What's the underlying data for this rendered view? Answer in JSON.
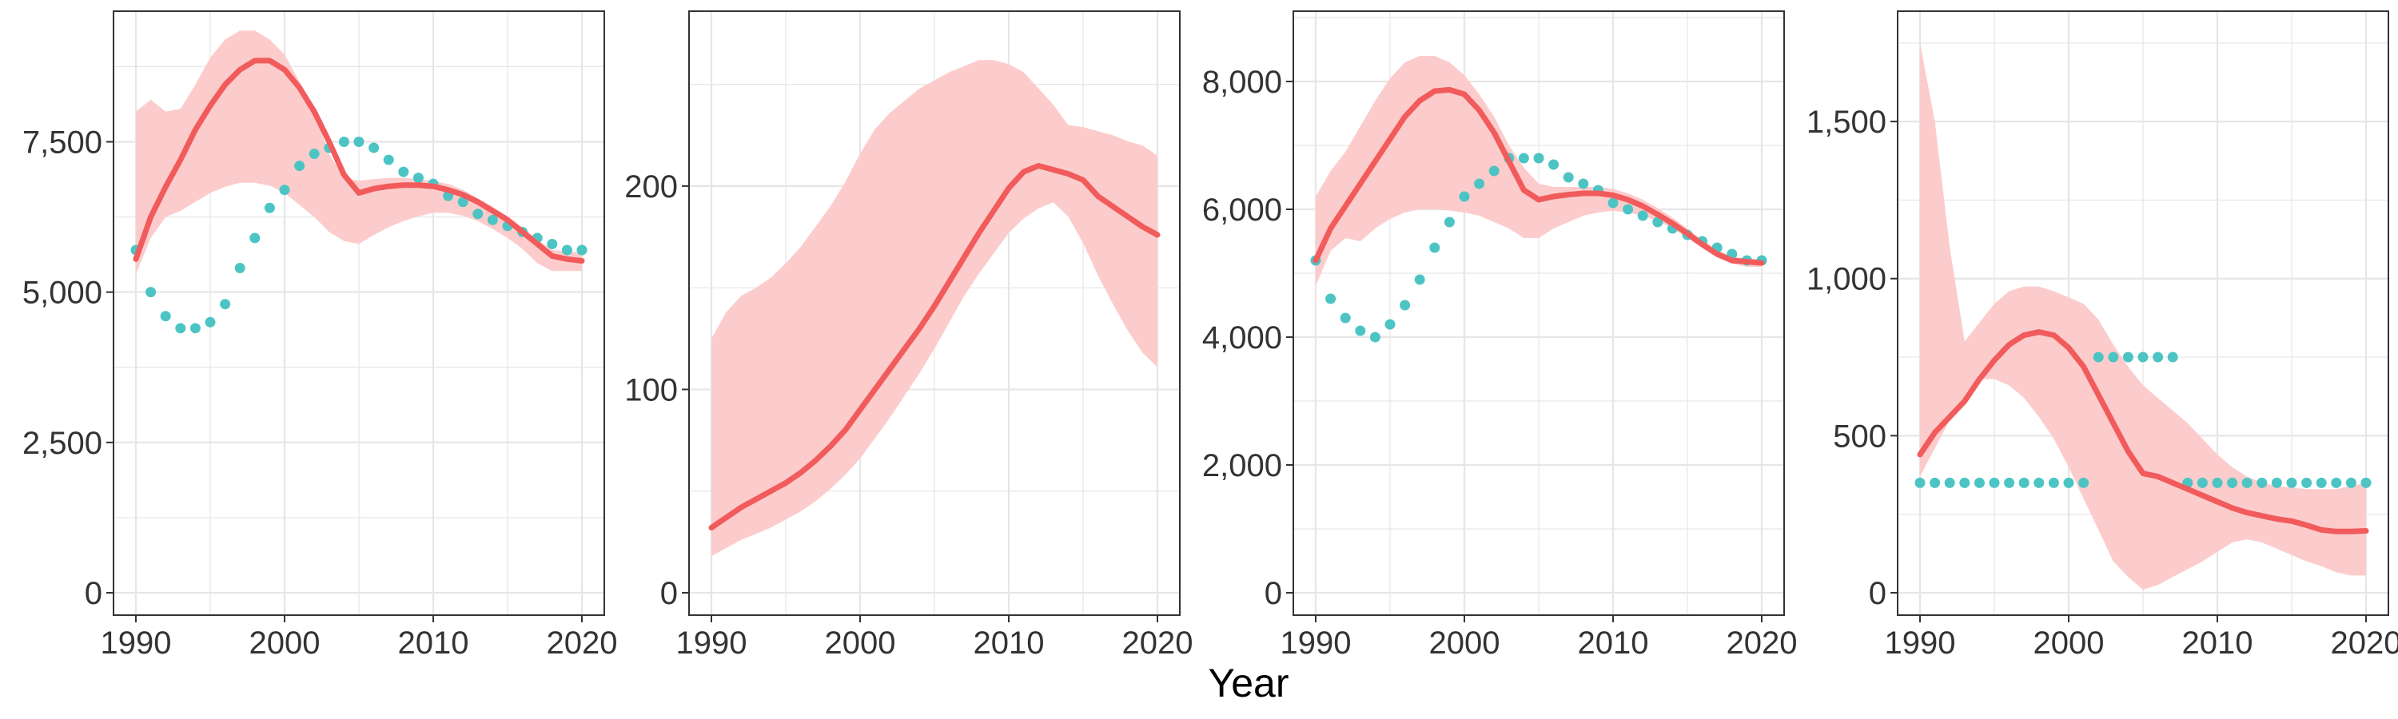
{
  "colors": {
    "line": "#f15b5b",
    "band": "#fccccc",
    "points": "#4cc4c4",
    "grid": "#e6e6e6",
    "border": "#333333",
    "text": "#333333"
  },
  "x_label": "Year",
  "chart_data": [
    {
      "type": "line",
      "xlim": [
        1990,
        2020
      ],
      "ylim": [
        0,
        9300
      ],
      "x_ticks": [
        1990,
        2000,
        2010,
        2020
      ],
      "x_tick_labels": [
        "1990",
        "2000",
        "2010",
        "2020"
      ],
      "y_ticks": [
        0,
        2500,
        5000,
        7500
      ],
      "y_tick_labels": [
        "0",
        "2,500",
        "5,000",
        "7,500"
      ],
      "grid": true,
      "x": [
        1990,
        1991,
        1992,
        1993,
        1994,
        1995,
        1996,
        1997,
        1998,
        1999,
        2000,
        2001,
        2002,
        2003,
        2004,
        2005,
        2006,
        2007,
        2008,
        2009,
        2010,
        2011,
        2012,
        2013,
        2014,
        2015,
        2016,
        2017,
        2018,
        2019,
        2020
      ],
      "line": [
        5550,
        6250,
        6750,
        7200,
        7700,
        8100,
        8450,
        8700,
        8850,
        8850,
        8700,
        8400,
        8000,
        7500,
        6950,
        6650,
        6720,
        6760,
        6780,
        6780,
        6760,
        6700,
        6620,
        6500,
        6350,
        6200,
        6000,
        5800,
        5600,
        5550,
        5520
      ],
      "band_lower": [
        5300,
        5900,
        6250,
        6350,
        6500,
        6650,
        6750,
        6820,
        6820,
        6770,
        6650,
        6450,
        6250,
        6000,
        5850,
        5800,
        5950,
        6080,
        6180,
        6260,
        6320,
        6320,
        6270,
        6180,
        6050,
        5900,
        5720,
        5480,
        5350,
        5350,
        5350
      ],
      "band_upper": [
        8000,
        8200,
        8000,
        8050,
        8450,
        8900,
        9200,
        9350,
        9350,
        9200,
        8950,
        8500,
        8000,
        7300,
        6900,
        6850,
        6880,
        6900,
        6900,
        6880,
        6850,
        6800,
        6700,
        6560,
        6420,
        6260,
        6080,
        5880,
        5700,
        5680,
        5660
      ],
      "points": [
        5700,
        5000,
        4600,
        4400,
        4400,
        4500,
        4800,
        5400,
        5900,
        6400,
        6700,
        7100,
        7300,
        7400,
        7500,
        7500,
        7400,
        7200,
        7000,
        6900,
        6800,
        6600,
        6500,
        6300,
        6200,
        6100,
        6000,
        5900,
        5800,
        5700,
        5700
      ]
    },
    {
      "type": "line",
      "xlim": [
        1990,
        2020
      ],
      "ylim": [
        0,
        275
      ],
      "x_ticks": [
        1990,
        2000,
        2010,
        2020
      ],
      "x_tick_labels": [
        "1990",
        "2000",
        "2010",
        "2020"
      ],
      "y_ticks": [
        0,
        100,
        200
      ],
      "y_tick_labels": [
        "0",
        "100",
        "200"
      ],
      "grid": true,
      "x": [
        1990,
        1991,
        1992,
        1993,
        1994,
        1995,
        1996,
        1997,
        1998,
        1999,
        2000,
        2001,
        2002,
        2003,
        2004,
        2005,
        2006,
        2007,
        2008,
        2009,
        2010,
        2011,
        2012,
        2013,
        2014,
        2015,
        2016,
        2017,
        2018,
        2019,
        2020
      ],
      "line": [
        32,
        37,
        42,
        46,
        50,
        54,
        59,
        65,
        72,
        80,
        90,
        100,
        110,
        120,
        130,
        141,
        153,
        165,
        177,
        188,
        199,
        207,
        210,
        208,
        206,
        203,
        195,
        190,
        185,
        180,
        176
      ],
      "band_lower": [
        18,
        22,
        26,
        29,
        32,
        36,
        40,
        45,
        51,
        58,
        66,
        76,
        86,
        97,
        108,
        120,
        133,
        146,
        157,
        167,
        177,
        184,
        189,
        192,
        185,
        172,
        156,
        142,
        129,
        118,
        111
      ],
      "band_upper": [
        125,
        138,
        146,
        150,
        155,
        162,
        170,
        180,
        190,
        202,
        216,
        228,
        236,
        242,
        248,
        252,
        256,
        259,
        262,
        262,
        260,
        256,
        248,
        240,
        230,
        229,
        227,
        225,
        222,
        220,
        215
      ],
      "points": []
    },
    {
      "type": "line",
      "xlim": [
        1990,
        2020
      ],
      "ylim": [
        0,
        8750
      ],
      "x_ticks": [
        1990,
        2000,
        2010,
        2020
      ],
      "x_tick_labels": [
        "1990",
        "2000",
        "2010",
        "2020"
      ],
      "y_ticks": [
        0,
        2000,
        4000,
        6000,
        8000
      ],
      "y_tick_labels": [
        "0",
        "2,000",
        "4,000",
        "6,000",
        "8,000"
      ],
      "grid": true,
      "x": [
        1990,
        1991,
        1992,
        1993,
        1994,
        1995,
        1996,
        1997,
        1998,
        1999,
        2000,
        2001,
        2002,
        2003,
        2004,
        2005,
        2006,
        2007,
        2008,
        2009,
        2010,
        2011,
        2012,
        2013,
        2014,
        2015,
        2016,
        2017,
        2018,
        2019,
        2020
      ],
      "line": [
        5200,
        5700,
        6050,
        6400,
        6750,
        7100,
        7450,
        7700,
        7850,
        7870,
        7800,
        7550,
        7200,
        6750,
        6300,
        6150,
        6200,
        6230,
        6250,
        6250,
        6220,
        6150,
        6050,
        5920,
        5780,
        5620,
        5450,
        5300,
        5200,
        5180,
        5160
      ],
      "band_lower": [
        4800,
        5350,
        5550,
        5500,
        5700,
        5850,
        5950,
        6000,
        6000,
        5980,
        5950,
        5900,
        5800,
        5700,
        5550,
        5550,
        5700,
        5800,
        5900,
        5950,
        5980,
        5950,
        5900,
        5820,
        5700,
        5550,
        5400,
        5250,
        5150,
        5100,
        5100
      ],
      "band_upper": [
        6200,
        6600,
        6900,
        7300,
        7700,
        8050,
        8300,
        8400,
        8400,
        8300,
        8100,
        7800,
        7450,
        7000,
        6650,
        6400,
        6350,
        6350,
        6350,
        6350,
        6320,
        6250,
        6150,
        6020,
        5870,
        5700,
        5520,
        5370,
        5260,
        5230,
        5220
      ],
      "points": [
        5200,
        4600,
        4300,
        4100,
        4000,
        4200,
        4500,
        4900,
        5400,
        5800,
        6200,
        6400,
        6600,
        6800,
        6800,
        6800,
        6700,
        6500,
        6400,
        6300,
        6100,
        6000,
        5900,
        5800,
        5700,
        5600,
        5500,
        5400,
        5300,
        5200,
        5200
      ]
    },
    {
      "type": "line",
      "xlim": [
        1990,
        2020
      ],
      "ylim": [
        0,
        1780
      ],
      "x_ticks": [
        1990,
        2000,
        2010,
        2020
      ],
      "x_tick_labels": [
        "1990",
        "2000",
        "2010",
        "2020"
      ],
      "y_ticks": [
        0,
        500,
        1000,
        1500
      ],
      "y_tick_labels": [
        "0",
        "500",
        "1,000",
        "1,500"
      ],
      "grid": true,
      "x": [
        1990,
        1991,
        1992,
        1993,
        1994,
        1995,
        1996,
        1997,
        1998,
        1999,
        2000,
        2001,
        2002,
        2003,
        2004,
        2005,
        2006,
        2007,
        2008,
        2009,
        2010,
        2011,
        2012,
        2013,
        2014,
        2015,
        2016,
        2017,
        2018,
        2019,
        2020
      ],
      "line": [
        440,
        510,
        560,
        610,
        680,
        740,
        790,
        820,
        830,
        820,
        780,
        720,
        630,
        540,
        450,
        380,
        370,
        350,
        330,
        310,
        290,
        270,
        255,
        245,
        235,
        228,
        215,
        200,
        195,
        195,
        197
      ],
      "band_lower": [
        370,
        460,
        550,
        620,
        680,
        680,
        660,
        620,
        560,
        490,
        400,
        300,
        200,
        100,
        50,
        10,
        25,
        50,
        75,
        100,
        130,
        160,
        170,
        160,
        140,
        120,
        100,
        85,
        65,
        55,
        55
      ],
      "band_upper": [
        1750,
        1500,
        1100,
        800,
        860,
        920,
        960,
        975,
        975,
        960,
        940,
        920,
        870,
        790,
        720,
        660,
        620,
        580,
        540,
        490,
        440,
        400,
        370,
        350,
        340,
        335,
        330,
        330,
        330,
        340,
        350
      ],
      "points": [
        350,
        350,
        350,
        350,
        350,
        350,
        350,
        350,
        350,
        350,
        350,
        350,
        750,
        750,
        750,
        750,
        750,
        750,
        350,
        350,
        350,
        350,
        350,
        350,
        350,
        350,
        350,
        350,
        350,
        350,
        350
      ]
    }
  ]
}
